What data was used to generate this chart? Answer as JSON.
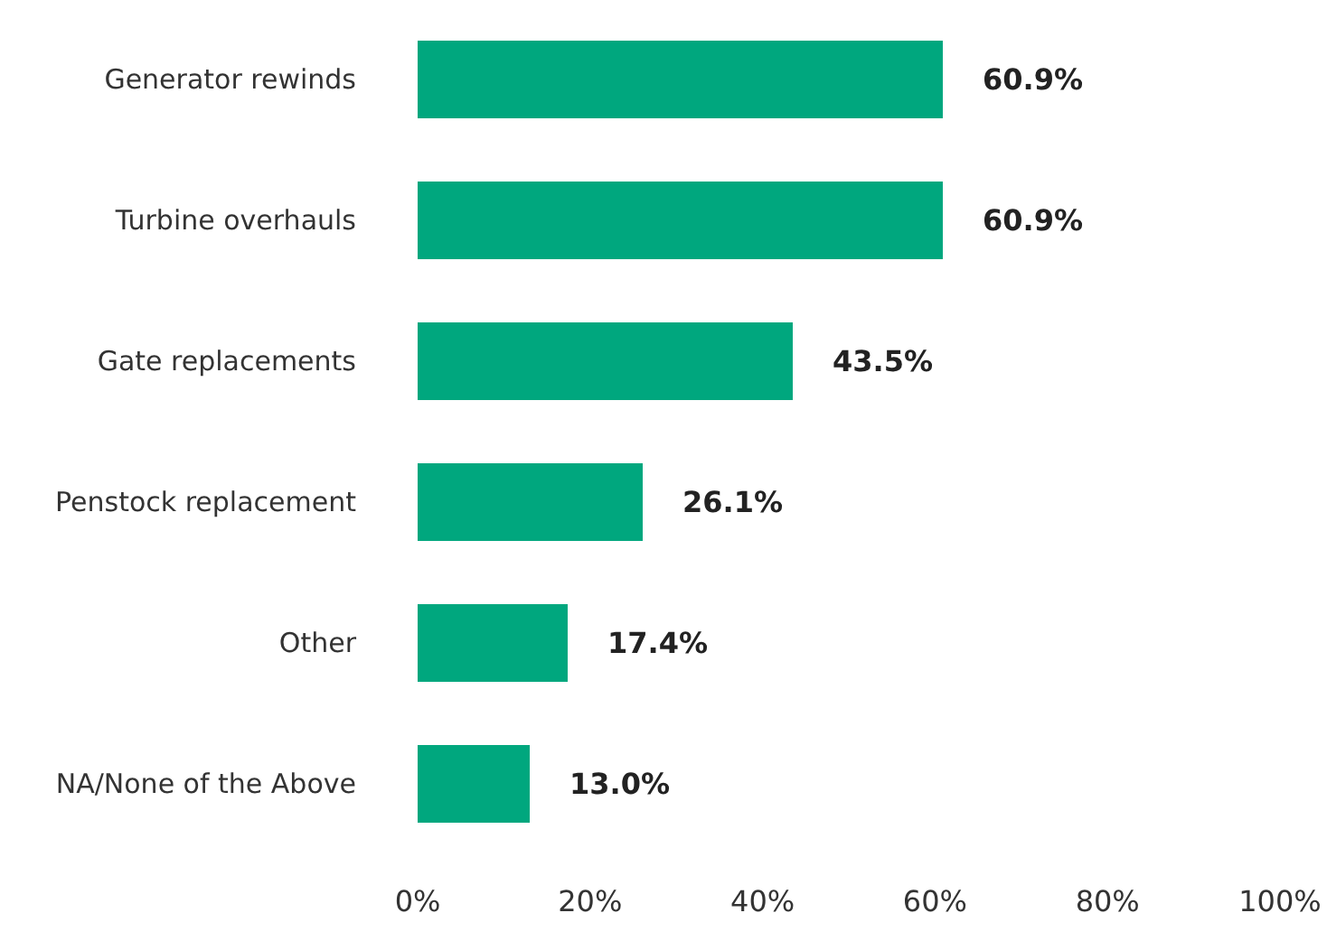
{
  "chart_data": {
    "type": "bar",
    "orientation": "horizontal",
    "categories": [
      "Generator rewinds",
      "Turbine overhauls",
      "Gate replacements",
      "Penstock replacement",
      "Other",
      "NA/None of the Above"
    ],
    "values": [
      60.9,
      60.9,
      43.5,
      26.1,
      17.4,
      13.0
    ],
    "value_labels": [
      "60.9%",
      "60.9%",
      "43.5%",
      "26.1%",
      "17.4%",
      "13.0%"
    ],
    "color": "#00a77e",
    "xlim": [
      0,
      100
    ],
    "xticks": [
      {
        "value": 0,
        "label": "0%"
      },
      {
        "value": 20,
        "label": "20%"
      },
      {
        "value": 40,
        "label": "40%"
      },
      {
        "value": 60,
        "label": "60%"
      },
      {
        "value": 80,
        "label": "80%"
      },
      {
        "value": 100,
        "label": "100%"
      }
    ],
    "grid": false
  }
}
